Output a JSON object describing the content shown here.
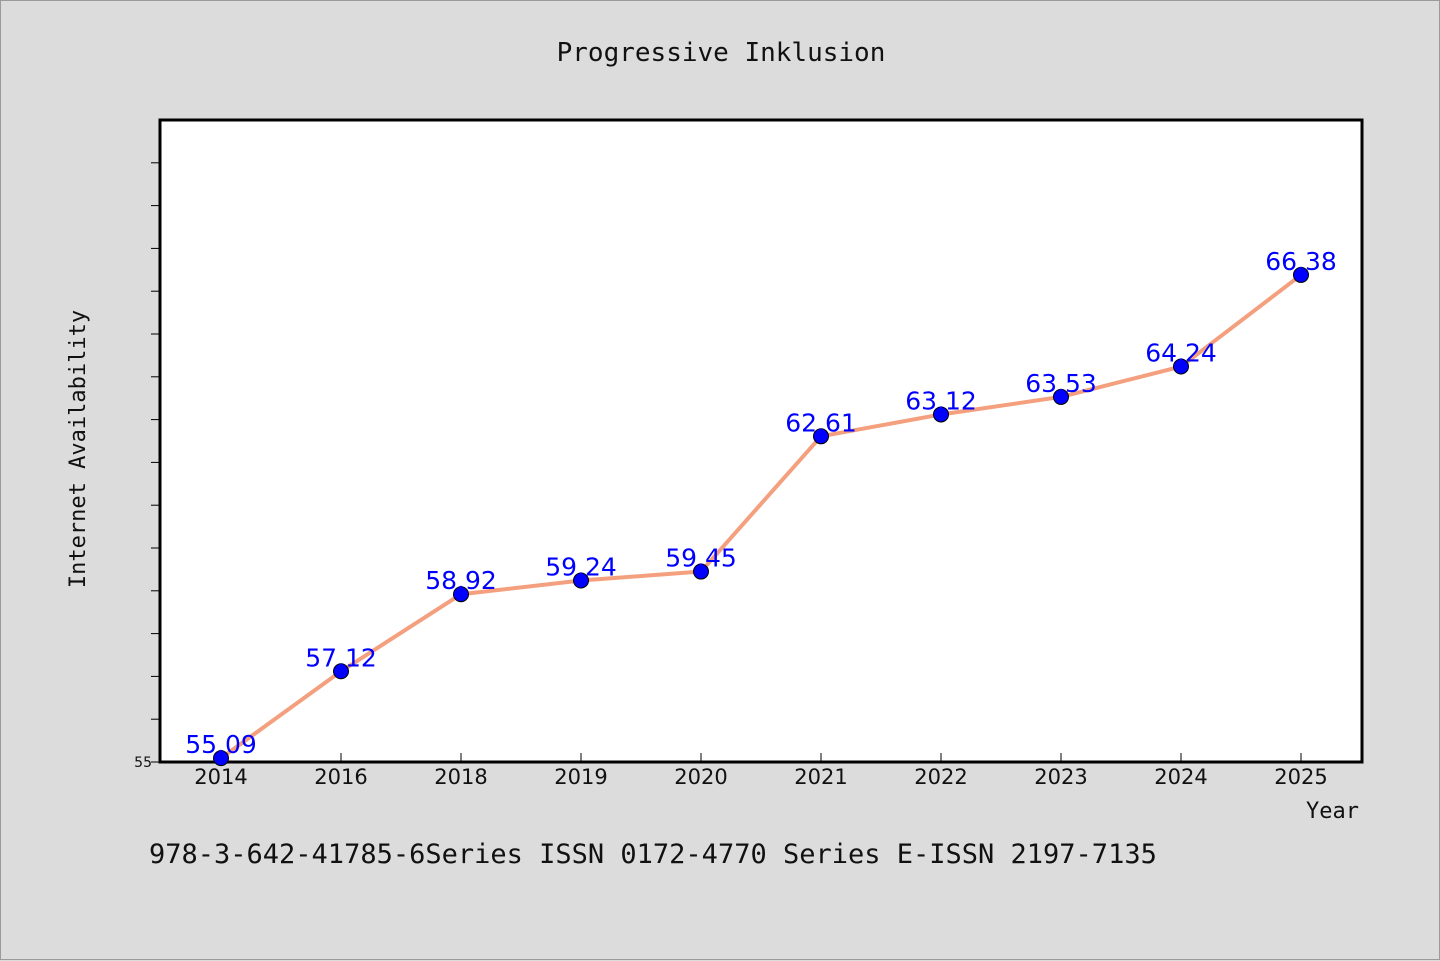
{
  "chart_data": {
    "type": "line",
    "title": "Progressive Inklusion",
    "xlabel": "Year",
    "ylabel": "Internet Availability",
    "categories": [
      "2014",
      "2016",
      "2018",
      "2019",
      "2020",
      "2021",
      "2022",
      "2023",
      "2024",
      "2025"
    ],
    "values": [
      55.09,
      57.12,
      58.92,
      59.24,
      59.45,
      62.61,
      63.12,
      63.53,
      64.24,
      66.38
    ],
    "data_labels": [
      "55.09",
      "57.12",
      "58.92",
      "59.24",
      "59.45",
      "62.61",
      "63.12",
      "63.53",
      "64.24",
      "66.38"
    ],
    "ylim": [
      55,
      70
    ],
    "y_tick_labels": [
      "55"
    ],
    "y_minor_tick_step": 1,
    "grid": false,
    "line_color": "#f4a07f",
    "marker_color": "#0000ff",
    "label_color": "#0000ff"
  },
  "footer": {
    "text": "978-3-642-41785-6Series ISSN 0172-4770 Series E-ISSN 2197-7135"
  }
}
